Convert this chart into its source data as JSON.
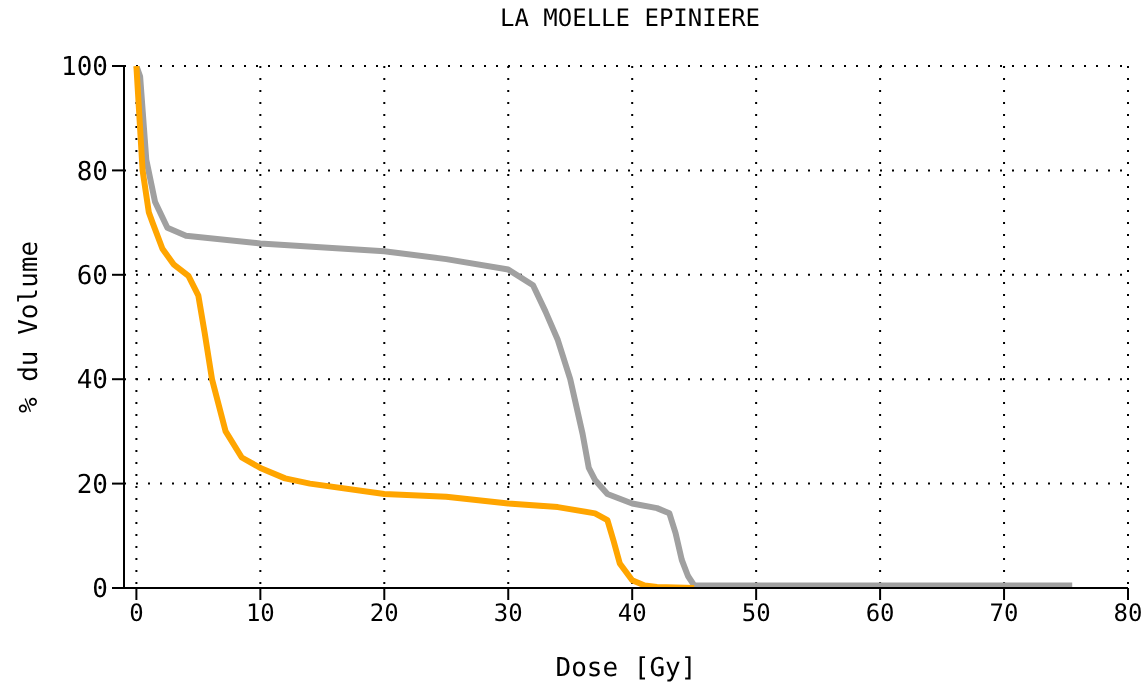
{
  "chart_data": {
    "type": "line",
    "title": "LA MOELLE EPINIERE",
    "xlabel": "Dose [Gy]",
    "ylabel": "% du Volume",
    "xlim": [
      -1,
      80
    ],
    "xticks": [
      0,
      10,
      20,
      30,
      40,
      50,
      60,
      70,
      80
    ],
    "ylim": [
      0,
      100
    ],
    "yticks": [
      0,
      20,
      40,
      60,
      80,
      100
    ],
    "grid": true,
    "marker": "none",
    "line_style": "solid",
    "series": [
      {
        "color": "#a0a0a0",
        "x": [
          0,
          0.3,
          0.8,
          1.5,
          2.5,
          4,
          10,
          20,
          25,
          30,
          32,
          33,
          34,
          35,
          36,
          36.5,
          37,
          38,
          40,
          42,
          43,
          43.5,
          44,
          44.5,
          45,
          75.5
        ],
        "values": [
          100,
          98,
          82,
          74,
          69,
          67.5,
          66,
          64.5,
          63,
          61,
          58,
          53,
          47.5,
          40,
          29.5,
          23,
          20.7,
          18,
          16.2,
          15.3,
          14.3,
          10.5,
          5.4,
          2.3,
          0.5,
          0.5
        ]
      },
      {
        "color": "#ffa500",
        "x": [
          0,
          0.3,
          0.5,
          1,
          1.3,
          2.1,
          3,
          4.2,
          5,
          5.5,
          6.1,
          7.2,
          8.5,
          10,
          12,
          14,
          20,
          25,
          30,
          34,
          37,
          38,
          38.5,
          39,
          40,
          41,
          42,
          45
        ],
        "values": [
          100,
          88,
          80,
          72,
          70,
          65,
          62,
          59.8,
          56,
          49,
          40,
          30,
          25,
          23,
          21,
          20,
          18,
          17.5,
          16.2,
          15.5,
          14.3,
          13,
          9,
          4.7,
          1.5,
          0.5,
          0.2,
          0
        ]
      }
    ]
  }
}
